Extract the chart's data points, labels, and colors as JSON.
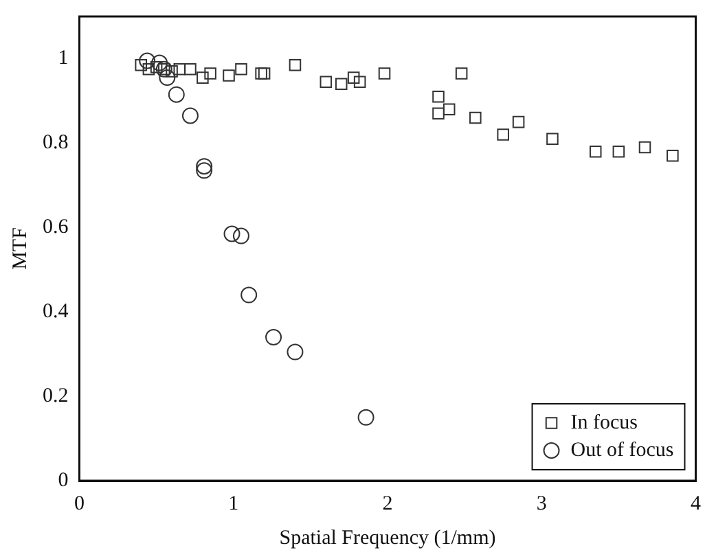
{
  "chart_data": {
    "type": "scatter",
    "xlabel": "Spatial Frequency (1/mm)",
    "ylabel": "MTF",
    "xlim": [
      0,
      4
    ],
    "ylim": [
      0,
      1.1
    ],
    "xticks": [
      0,
      1,
      2,
      3,
      4
    ],
    "yticks": [
      0,
      0.2,
      0.4,
      0.6,
      0.8,
      1
    ],
    "grid": false,
    "legend": "bottom right",
    "series": [
      {
        "name": "In focus",
        "color": "#333333",
        "marker": "square",
        "x": [
          0.4,
          0.45,
          0.5,
          0.55,
          0.6,
          0.65,
          0.72,
          0.8,
          0.85,
          0.97,
          1.05,
          1.18,
          1.2,
          1.4,
          1.6,
          1.7,
          1.78,
          1.82,
          1.98,
          2.33,
          2.33,
          2.4,
          2.48,
          2.57,
          2.75,
          2.85,
          3.07,
          3.35,
          3.5,
          3.67,
          3.85
        ],
        "values": [
          0.985,
          0.975,
          0.98,
          0.975,
          0.97,
          0.975,
          0.975,
          0.955,
          0.965,
          0.96,
          0.975,
          0.965,
          0.965,
          0.985,
          0.945,
          0.94,
          0.955,
          0.945,
          0.965,
          0.91,
          0.87,
          0.88,
          0.965,
          0.86,
          0.82,
          0.85,
          0.81,
          0.78,
          0.78,
          0.79,
          0.77
        ]
      },
      {
        "name": "Out of focus",
        "color": "#333333",
        "marker": "circle",
        "x": [
          0.44,
          0.52,
          0.55,
          0.57,
          0.63,
          0.72,
          0.81,
          0.81,
          0.99,
          1.05,
          1.1,
          1.26,
          1.4,
          1.86
        ],
        "values": [
          0.995,
          0.99,
          0.975,
          0.955,
          0.915,
          0.865,
          0.745,
          0.735,
          0.585,
          0.58,
          0.44,
          0.34,
          0.305,
          0.15
        ]
      }
    ]
  }
}
